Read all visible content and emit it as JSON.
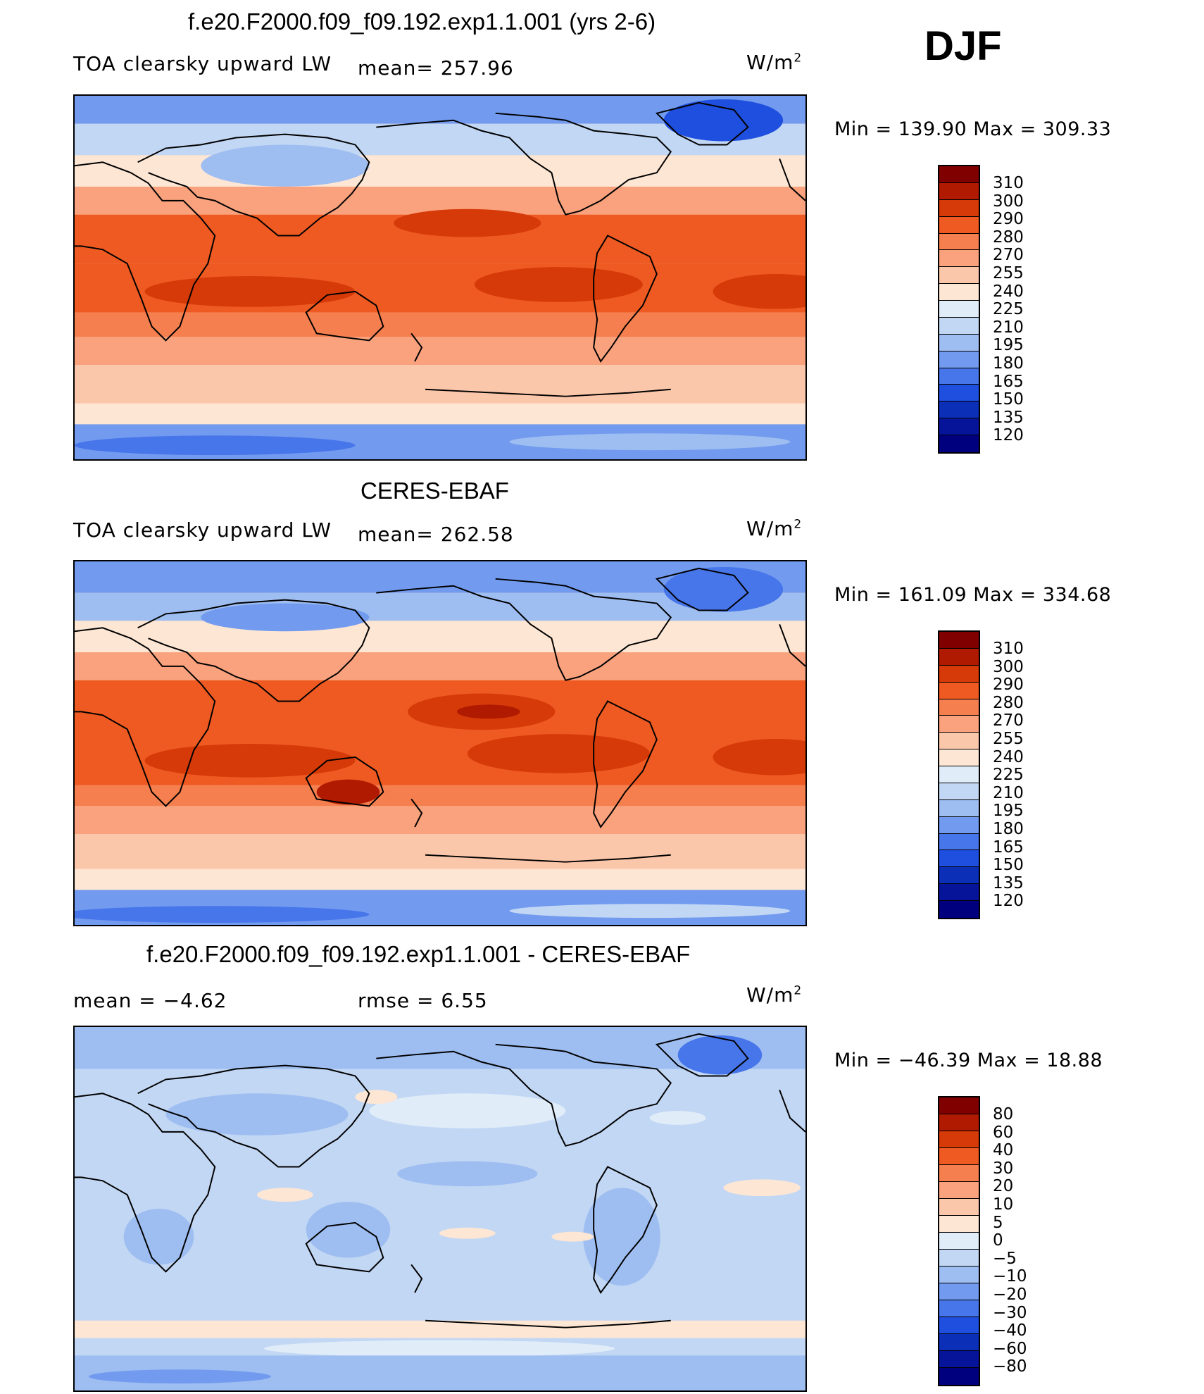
{
  "season": "DJF",
  "units_base": "W/m",
  "units_exp": "2",
  "panels": [
    {
      "title": "f.e20.F2000.f09_f09.192.exp1.1.001 (yrs 2-6)",
      "variable": "TOA clearsky upward LW",
      "stat_text": "mean= 257.96",
      "minmax": "Min = 139.90 Max = 309.33",
      "colorbar_labels": [
        "310",
        "300",
        "290",
        "280",
        "270",
        "255",
        "240",
        "225",
        "210",
        "195",
        "180",
        "165",
        "150",
        "135",
        "120"
      ]
    },
    {
      "title": "CERES-EBAF",
      "variable": "TOA clearsky upward LW",
      "stat_text": "mean= 262.58",
      "minmax": "Min = 161.09 Max = 334.68",
      "colorbar_labels": [
        "310",
        "300",
        "290",
        "280",
        "270",
        "255",
        "240",
        "225",
        "210",
        "195",
        "180",
        "165",
        "150",
        "135",
        "120"
      ]
    },
    {
      "title": "f.e20.F2000.f09_f09.192.exp1.1.001 - CERES-EBAF",
      "mean_text": "mean =   −4.62",
      "rmse_text": "rmse =    6.55",
      "minmax": "Min = −46.39 Max =  18.88",
      "colorbar_labels": [
        "80",
        "60",
        "40",
        "30",
        "20",
        "10",
        "5",
        "0",
        "−5",
        "−10",
        "−20",
        "−30",
        "−40",
        "−60",
        "−80"
      ]
    }
  ],
  "colors": {
    "abs_scale": [
      "#800000",
      "#b01a00",
      "#d63a08",
      "#ee5a22",
      "#f57f4f",
      "#f9a27d",
      "#fbc7ab",
      "#fde6d4",
      "#e0ecf8",
      "#c2d7f4",
      "#9ebef1",
      "#729bef",
      "#4775ea",
      "#1f4fdf",
      "#0b2fb7",
      "#06149a",
      "#00007e"
    ],
    "diff_scale": [
      "#800000",
      "#b01a00",
      "#d63a08",
      "#ee5a22",
      "#f57f4f",
      "#f9a27d",
      "#fbc7ab",
      "#fde6d4",
      "#e0ecf8",
      "#c2d7f4",
      "#9ebef1",
      "#729bef",
      "#4775ea",
      "#1f4fdf",
      "#0b2fb7",
      "#06149a",
      "#00007e"
    ]
  },
  "icons": {
    "map": "world-map-pacific-centered"
  }
}
